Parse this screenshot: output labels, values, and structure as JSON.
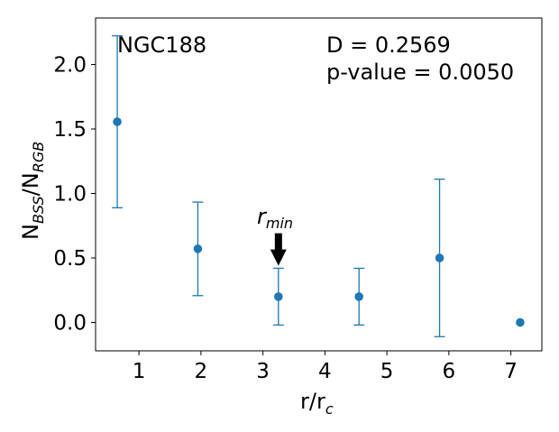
{
  "chart_data": {
    "type": "scatter",
    "title": "",
    "series": [
      {
        "x": [
          0.65,
          1.95,
          3.25,
          4.55,
          5.85,
          7.15
        ],
        "y": [
          1.556,
          0.571,
          0.2,
          0.2,
          0.5,
          0.0
        ],
        "y_err_low": [
          0.889,
          0.208,
          -0.02,
          -0.02,
          -0.11,
          0.0
        ],
        "y_err_high": [
          2.222,
          0.933,
          0.42,
          0.42,
          1.111,
          0.0
        ],
        "color": "#1f77b4"
      }
    ],
    "xlim": [
      0.3,
      7.5
    ],
    "ylim": [
      -0.22,
      2.36
    ],
    "x_ticks": [
      1,
      2,
      3,
      4,
      5,
      6,
      7
    ],
    "y_ticks": [
      0.0,
      0.5,
      1.0,
      1.5,
      2.0
    ],
    "x_tick_labels": [
      "1",
      "2",
      "3",
      "4",
      "5",
      "6",
      "7"
    ],
    "y_tick_labels": [
      "0.0",
      "0.5",
      "1.0",
      "1.5",
      "2.0"
    ],
    "xlabel": {
      "main": "r/r",
      "sub": "c"
    },
    "ylabel": {
      "n1": "N",
      "sub1": "BSS",
      "sep": "/N",
      "sub2": "RGB"
    },
    "annotations": {
      "cluster_name": "NGC188",
      "d_stat": "D = 0.2569",
      "p_value": "p-value = 0.0050",
      "rmin_label": {
        "main": "r",
        "sub": "min"
      },
      "rmin_arrow_x": 3.25,
      "rmin_arrow_y": 0.44
    },
    "grid": false,
    "legend": "none"
  }
}
